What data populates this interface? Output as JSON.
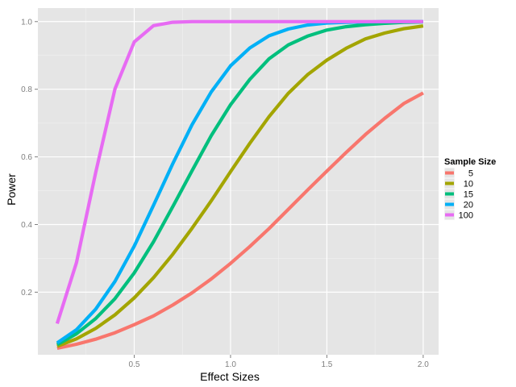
{
  "chart_data": {
    "type": "line",
    "xlabel": "Effect Sizes",
    "ylabel": "Power",
    "xlim": [
      0.0,
      2.08
    ],
    "ylim": [
      0.015,
      1.04
    ],
    "xticks": [
      0.5,
      1.0,
      1.5,
      2.0
    ],
    "xtick_labels": [
      "0.5",
      "1.0",
      "1.5",
      "2.0"
    ],
    "yticks": [
      0.2,
      0.4,
      0.6,
      0.8,
      1.0
    ],
    "ytick_labels": [
      "0.2",
      "0.4",
      "0.6",
      "0.8",
      "1.0"
    ],
    "grid": true,
    "legend": {
      "title": "Sample Size",
      "position": "right"
    },
    "x": [
      0.1,
      0.2,
      0.3,
      0.4,
      0.5,
      0.6,
      0.7,
      0.8,
      0.9,
      1.0,
      1.1,
      1.2,
      1.3,
      1.4,
      1.5,
      1.6,
      1.7,
      1.8,
      1.9,
      2.0
    ],
    "series": [
      {
        "name": "5",
        "color": "#F8766D",
        "values": [
          0.034,
          0.046,
          0.061,
          0.08,
          0.104,
          0.13,
          0.162,
          0.198,
          0.239,
          0.285,
          0.335,
          0.388,
          0.445,
          0.502,
          0.558,
          0.613,
          0.666,
          0.714,
          0.758,
          0.789
        ]
      },
      {
        "name": "10",
        "color": "#A3A500",
        "values": [
          0.04,
          0.062,
          0.093,
          0.133,
          0.183,
          0.243,
          0.312,
          0.389,
          0.47,
          0.556,
          0.64,
          0.719,
          0.788,
          0.843,
          0.886,
          0.921,
          0.949,
          0.966,
          0.979,
          0.987
        ]
      },
      {
        "name": "15",
        "color": "#00BF7D",
        "values": [
          0.045,
          0.077,
          0.122,
          0.181,
          0.257,
          0.349,
          0.453,
          0.559,
          0.663,
          0.754,
          0.829,
          0.89,
          0.931,
          0.957,
          0.975,
          0.985,
          0.991,
          0.995,
          0.998,
          0.999
        ]
      },
      {
        "name": "20",
        "color": "#00B0F6",
        "values": [
          0.05,
          0.089,
          0.15,
          0.232,
          0.336,
          0.457,
          0.58,
          0.695,
          0.792,
          0.869,
          0.922,
          0.958,
          0.978,
          0.99,
          0.996,
          0.998,
          0.999,
          1.0,
          1.0,
          1.0
        ]
      },
      {
        "name": "100",
        "color": "#E76BF3",
        "values": [
          0.107,
          0.287,
          0.554,
          0.801,
          0.94,
          0.988,
          0.998,
          1.0,
          1.0,
          1.0,
          1.0,
          1.0,
          1.0,
          1.0,
          1.0,
          1.0,
          1.0,
          1.0,
          1.0,
          1.0
        ]
      }
    ]
  }
}
